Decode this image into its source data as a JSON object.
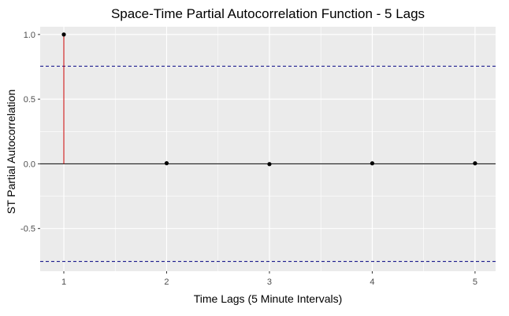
{
  "chart_data": {
    "type": "scatter",
    "title": "Space-Time Partial Autocorrelation Function - 5 Lags",
    "xlabel": "Time Lags (5 Minute Intervals)",
    "ylabel": "ST Partial Autocorrelation",
    "x": [
      1,
      2,
      3,
      4,
      5
    ],
    "values": [
      1.0,
      0.005,
      -0.002,
      0.004,
      0.004
    ],
    "xlim": [
      0.77,
      5.2
    ],
    "ylim": [
      -0.83,
      1.06
    ],
    "x_ticks": [
      "1",
      "2",
      "3",
      "4",
      "5"
    ],
    "y_ticks": [
      "1.0",
      "0.5",
      "0.0",
      "-0.5"
    ],
    "y_tick_values": [
      1.0,
      0.5,
      0.0,
      -0.5
    ],
    "confidence_bounds": [
      0.755,
      -0.755
    ],
    "grid": true,
    "colors": {
      "panel": "#ebebeb",
      "grid": "#ffffff",
      "spike": "#cc0000",
      "point": "#000000",
      "zero_line": "#000000",
      "bound_line": "#000080"
    }
  }
}
